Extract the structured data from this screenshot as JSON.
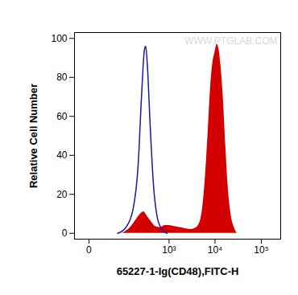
{
  "chart_data": {
    "type": "histogram",
    "x_label": "65227-1-Ig(CD48),FITC-H",
    "y_label": "Relative Cell Number",
    "annotations": [
      "WWW.PTGLAB.COM"
    ],
    "log": "x",
    "grid": false,
    "xlim": [
      -20,
      262144
    ],
    "xticks": [
      0,
      {
        "value": 1000,
        "label": "10³"
      },
      {
        "value": 10000,
        "label": "10⁴"
      },
      {
        "value": 100000,
        "label": "10⁵"
      }
    ],
    "ylim": [
      -3,
      103
    ],
    "yticks": [
      0,
      20,
      40,
      60,
      80,
      100
    ],
    "series": [
      {
        "type": "area",
        "color": "#d40000",
        "x": [
          80,
          130,
          180,
          230,
          270,
          320,
          400,
          500,
          650,
          800,
          1000,
          1300,
          1700,
          2200,
          3000,
          4000,
          5000,
          6000,
          7000,
          8000,
          9000,
          10000,
          11000,
          12000,
          13500,
          15000,
          17000,
          19000,
          22000,
          26000,
          30000
        ],
        "values": [
          0,
          3,
          7,
          10,
          11,
          9,
          6,
          3.5,
          3,
          4,
          4,
          3.5,
          3,
          2.5,
          2,
          3,
          8,
          25,
          50,
          75,
          88,
          93,
          97,
          95,
          85,
          70,
          45,
          25,
          10,
          3,
          0
        ]
      },
      {
        "type": "line",
        "color": "#1a1aa6",
        "x": [
          60,
          100,
          150,
          200,
          240,
          280,
          300,
          330,
          380,
          450,
          550,
          700,
          900
        ],
        "values": [
          0,
          3,
          12,
          35,
          70,
          94,
          96,
          85,
          55,
          25,
          8,
          2,
          0
        ]
      }
    ]
  }
}
